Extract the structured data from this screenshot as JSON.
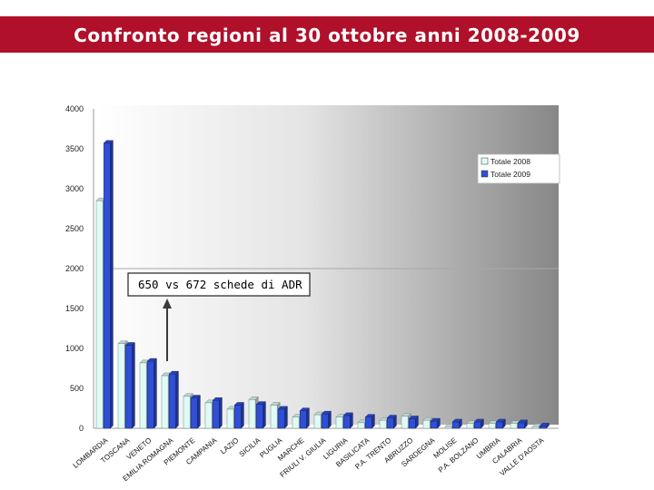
{
  "slide": {
    "title": "Confronto regioni al 30 ottobre anni 2008-2009",
    "title_bar_color": "#b0102a"
  },
  "annotation": {
    "text": "650 vs 672 schede di ADR",
    "arrow_target": "LOMBARDIA"
  },
  "chart_data": {
    "type": "bar",
    "title": "",
    "xlabel": "",
    "ylabel": "",
    "ylim": [
      0,
      4000
    ],
    "yticks": [
      0,
      500,
      1000,
      1500,
      2000,
      2500,
      3000,
      3500,
      4000
    ],
    "grid": false,
    "legend_position": "top-right",
    "categories": [
      "LOMBARDIA",
      "TOSCANA",
      "VENETO",
      "EMILIA ROMAGNA",
      "PIEMONTE",
      "CAMPANIA",
      "LAZIO",
      "SICILIA",
      "PUGLIA",
      "MARCHE",
      "FRIULI V. GIULIA",
      "LIGURIA",
      "BASILICATA",
      "P.A. TRENTO",
      "ABRUZZO",
      "SARDEGNA",
      "MOLISE",
      "P.A. BOLZANO",
      "UMBRIA",
      "CALABRIA",
      "VALLE D'AOSTA"
    ],
    "series": [
      {
        "name": "Totale 2008",
        "color": "#dffbf6",
        "values": [
          2850,
          1060,
          820,
          660,
          400,
          320,
          240,
          360,
          290,
          140,
          170,
          140,
          70,
          100,
          150,
          100,
          20,
          60,
          60,
          60,
          20
        ]
      },
      {
        "name": "Totale 2009",
        "color": "#2f4fd6",
        "values": [
          3570,
          1040,
          840,
          680,
          380,
          350,
          290,
          300,
          240,
          220,
          180,
          160,
          140,
          130,
          120,
          90,
          80,
          80,
          80,
          70,
          30
        ]
      }
    ]
  }
}
